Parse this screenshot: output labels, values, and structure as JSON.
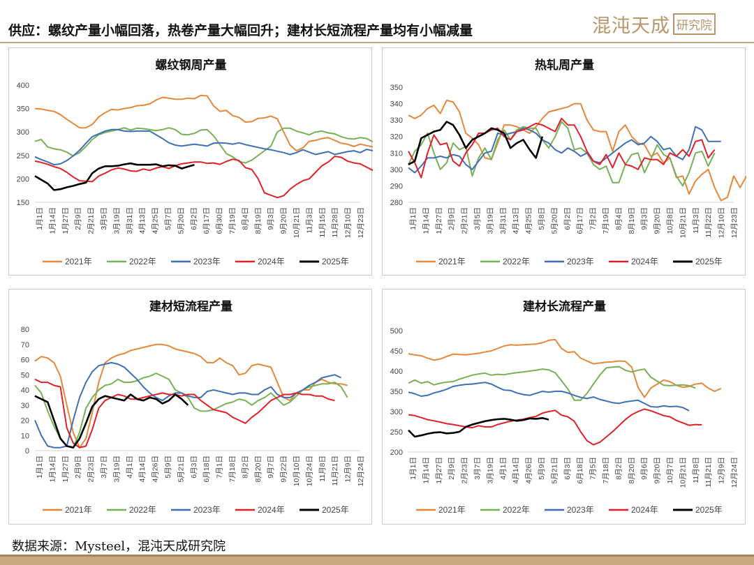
{
  "header": {
    "title": "供应：螺纹产量小幅回落，热卷产量大幅回升；建材长短流程产量均有小幅减量",
    "logo_mark": "混沌天成",
    "logo_box": "研究院"
  },
  "footer": {
    "source": "数据来源：Mysteel，混沌天成研究院"
  },
  "colors": {
    "2021年": "#e8873a",
    "2022年": "#77b155",
    "2023年": "#3f6fb5",
    "2024年": "#e02127",
    "2025年": "#000000"
  },
  "chart_data": [
    {
      "type": "line",
      "title": "螺纹钢周产量",
      "ylim": [
        150,
        400
      ],
      "yticks": [
        150,
        200,
        250,
        300,
        350,
        400
      ],
      "xlabels": [
        "1月1日",
        "1月14日",
        "1月27日",
        "2月9日",
        "2月21日",
        "3月5日",
        "3月19日",
        "3月31日",
        "4月13日",
        "4月25日",
        "5月7日",
        "5月20日",
        "6月2日",
        "6月17日",
        "6月30日",
        "7月19日",
        "8月4日",
        "8月19日",
        "9月3日",
        "9月20日",
        "10月21日",
        "11月3日",
        "11月15日",
        "11月28日",
        "12月10日",
        "12月23日"
      ],
      "series": [
        {
          "name": "2021年",
          "values": [
            350,
            349,
            346,
            344,
            337,
            327,
            318,
            309,
            309,
            316,
            332,
            341,
            348,
            347,
            350,
            352,
            356,
            357,
            360,
            368,
            374,
            372,
            370,
            370,
            372,
            371,
            378,
            377,
            356,
            344,
            346,
            335,
            331,
            321,
            322,
            329,
            330,
            334,
            328,
            300,
            272,
            260,
            266,
            280,
            282,
            286,
            288,
            282,
            276,
            274,
            269,
            274,
            271,
            268,
            272
          ]
        },
        {
          "name": "2022年",
          "values": [
            280,
            284,
            268,
            264,
            262,
            257,
            249,
            256,
            269,
            284,
            294,
            299,
            302,
            305,
            309,
            304,
            308,
            307,
            305,
            303,
            305,
            309,
            305,
            295,
            294,
            297,
            304,
            305,
            292,
            273,
            254,
            247,
            237,
            234,
            240,
            250,
            260,
            270,
            300,
            308,
            308,
            302,
            298,
            294,
            300,
            302,
            298,
            296,
            290,
            286,
            285,
            288,
            286,
            279,
            270
          ]
        },
        {
          "name": "2023年",
          "values": [
            247,
            241,
            236,
            230,
            232,
            239,
            249,
            261,
            276,
            290,
            296,
            302,
            305,
            305,
            302,
            301,
            302,
            302,
            302,
            294,
            286,
            277,
            272,
            270,
            272,
            274,
            272,
            270,
            276,
            277,
            276,
            274,
            277,
            273,
            270,
            267,
            264,
            262,
            259,
            256,
            252,
            256,
            262,
            257,
            252,
            255,
            258,
            252,
            255,
            258,
            260,
            256,
            263,
            260,
            255
          ]
        },
        {
          "name": "2024年",
          "values": [
            238,
            235,
            231,
            226,
            222,
            214,
            204,
            196,
            195,
            194,
            206,
            212,
            219,
            223,
            221,
            217,
            216,
            221,
            218,
            223,
            226,
            222,
            228,
            232,
            234,
            236,
            236,
            233,
            234,
            231,
            237,
            242,
            239,
            224,
            220,
            200,
            170,
            165,
            160,
            164,
            178,
            188,
            196,
            200,
            214,
            228,
            236,
            248,
            246,
            238,
            234,
            232,
            225,
            218,
            216
          ]
        },
        {
          "name": "2025年",
          "values": [
            206,
            198,
            190,
            176,
            178,
            182,
            185,
            189,
            192,
            212,
            222,
            227,
            227,
            228,
            231,
            233,
            230,
            230,
            230,
            231,
            227,
            229,
            228,
            222,
            226,
            230
          ]
        }
      ]
    },
    {
      "type": "line",
      "title": "热轧周产量",
      "ylim": [
        280,
        350
      ],
      "yticks": [
        280,
        290,
        300,
        310,
        320,
        330,
        340,
        350
      ],
      "xlabels": [
        "1月1日",
        "1月14日",
        "1月27日",
        "2月9日",
        "2月21日",
        "3月5日",
        "3月19日",
        "3月31日",
        "4月13日",
        "4月25日",
        "5月8日",
        "5月20日",
        "6月2日",
        "6月17日",
        "7月2日",
        "7月19日",
        "8月4日",
        "8月19日",
        "9月3日",
        "9月20日",
        "10月8日",
        "10月21日",
        "11月3日",
        "11月22日",
        "12月10日",
        "12月23日"
      ],
      "series": [
        {
          "name": "2021年",
          "values": [
            333,
            331,
            333,
            337,
            339,
            334,
            342,
            341,
            335,
            322,
            319,
            315,
            307,
            306,
            316,
            327,
            327,
            326,
            324,
            322,
            326,
            331,
            335,
            336,
            337,
            338,
            340,
            340,
            330,
            324,
            323,
            323,
            311,
            323,
            327,
            320,
            316,
            315,
            308,
            310,
            304,
            307,
            295,
            296,
            285,
            293,
            297,
            300,
            289,
            281,
            283,
            296,
            289,
            296
          ]
        },
        {
          "name": "2022年",
          "values": [
            303,
            311,
            315,
            322,
            310,
            300,
            304,
            316,
            312,
            314,
            296,
            307,
            313,
            306,
            318,
            324,
            318,
            324,
            326,
            325,
            325,
            318,
            313,
            320,
            329,
            325,
            312,
            313,
            310,
            303,
            300,
            302,
            292,
            292,
            303,
            309,
            310,
            298,
            306,
            315,
            309,
            307,
            296,
            290,
            298,
            310,
            311,
            302,
            310
          ]
        },
        {
          "name": "2023年",
          "values": [
            301,
            298,
            302,
            307,
            307,
            308,
            307,
            309,
            308,
            303,
            300,
            305,
            310,
            311,
            322,
            321,
            322,
            323,
            325,
            324,
            322,
            318,
            316,
            312,
            310,
            313,
            311,
            308,
            310,
            305,
            304,
            307,
            310,
            313,
            316,
            318,
            315,
            316,
            320,
            317,
            312,
            313,
            308,
            306,
            312,
            326,
            324,
            317,
            317,
            317
          ]
        },
        {
          "name": "2024年",
          "values": [
            311,
            304,
            295,
            310,
            321,
            315,
            316,
            305,
            302,
            310,
            315,
            322,
            322,
            324,
            325,
            320,
            318,
            323,
            324,
            326,
            328,
            327,
            325,
            323,
            331,
            327,
            327,
            320,
            311,
            305,
            303,
            309,
            301,
            310,
            303,
            302,
            300,
            307,
            306,
            306,
            303,
            310,
            308,
            312,
            308,
            317,
            318,
            307,
            312
          ]
        },
        {
          "name": "2025年",
          "values": [
            303,
            305,
            319,
            321,
            323,
            324,
            329,
            327,
            321,
            313,
            318,
            320,
            322,
            325,
            324,
            322,
            313,
            316,
            318,
            312,
            307,
            320
          ]
        }
      ]
    },
    {
      "type": "line",
      "title": "建材短流程产量",
      "ylim": [
        0,
        80
      ],
      "yticks": [
        0,
        10,
        20,
        30,
        40,
        50,
        60,
        70,
        80
      ],
      "xlabels": [
        "1月1日",
        "1月14日",
        "1月27日",
        "2月9日",
        "2月23日",
        "3月7日",
        "3月19日",
        "4月1日",
        "4月14日",
        "4月26日",
        "5月9日",
        "5月21日",
        "6月3日",
        "6月18日",
        "7月1日",
        "7月18日",
        "8月2日",
        "8月20日",
        "9月7日",
        "9月22日",
        "10月10日",
        "10月24日",
        "11月8日",
        "11月21日",
        "12月9日",
        "12月24日"
      ],
      "series": [
        {
          "name": "2021年",
          "values": [
            59,
            62,
            61,
            58,
            49,
            30,
            12,
            2,
            8,
            25,
            45,
            58,
            61,
            63,
            64,
            66,
            67,
            68,
            69,
            70,
            70,
            69,
            67,
            66,
            65,
            64,
            62,
            58,
            58,
            61,
            58,
            56,
            50,
            51,
            56,
            57,
            56,
            55,
            45,
            35,
            33,
            38,
            40,
            40,
            45,
            47,
            45,
            44,
            44,
            43
          ]
        },
        {
          "name": "2022年",
          "values": [
            43,
            38,
            26,
            16,
            8,
            3,
            2,
            12,
            28,
            35,
            40,
            43,
            44,
            47,
            45,
            45,
            46,
            48,
            49,
            51,
            49,
            47,
            40,
            38,
            35,
            28,
            26,
            26,
            27,
            29,
            31,
            32,
            34,
            33,
            30,
            33,
            35,
            38,
            34,
            30,
            32,
            36,
            40,
            42,
            43,
            44,
            44,
            45,
            42,
            35
          ]
        },
        {
          "name": "2023年",
          "values": [
            20,
            10,
            3,
            2,
            2,
            3,
            20,
            35,
            45,
            52,
            56,
            57,
            58,
            57,
            55,
            51,
            47,
            42,
            38,
            35,
            33,
            36,
            38,
            38,
            36,
            35,
            35,
            39,
            40,
            39,
            38,
            37,
            38,
            38,
            37,
            37,
            40,
            42,
            37,
            35,
            35,
            38,
            40,
            43,
            45,
            48,
            49,
            50,
            48
          ]
        },
        {
          "name": "2024年",
          "values": [
            47,
            45,
            45,
            43,
            42,
            15,
            5,
            2,
            3,
            14,
            28,
            33,
            35,
            37,
            36,
            34,
            34,
            35,
            36,
            37,
            38,
            37,
            37,
            36,
            37,
            37,
            33,
            30,
            27,
            26,
            25,
            22,
            20,
            18,
            22,
            25,
            29,
            33,
            35,
            37,
            37,
            38,
            37,
            37,
            36,
            36,
            34,
            33
          ]
        },
        {
          "name": "2025年",
          "values": [
            36,
            34,
            32,
            20,
            8,
            3,
            2,
            8,
            18,
            29,
            34,
            36,
            35,
            34,
            33,
            37,
            34,
            33,
            35,
            34,
            31,
            33,
            37,
            34,
            30
          ]
        }
      ]
    },
    {
      "type": "line",
      "title": "建材长流程产量",
      "ylim": [
        200,
        500
      ],
      "yticks": [
        200,
        250,
        300,
        350,
        400,
        450,
        500
      ],
      "xlabels": [
        "1月1日",
        "1月14日",
        "1月27日",
        "2月9日",
        "2月23日",
        "3月7日",
        "3月19日",
        "4月1日",
        "4月14日",
        "4月26日",
        "5月9日",
        "5月21日",
        "6月3日",
        "6月18日",
        "7月5日",
        "7月18日",
        "8月2日",
        "8月20日",
        "9月6日",
        "9月20日",
        "10月7日",
        "10月21日",
        "11月8日",
        "11月21日",
        "12月9日",
        "12月24日"
      ],
      "series": [
        {
          "name": "2021年",
          "values": [
            443,
            440,
            438,
            432,
            427,
            430,
            436,
            442,
            441,
            440,
            442,
            444,
            447,
            450,
            456,
            462,
            465,
            464,
            465,
            466,
            467,
            470,
            476,
            478,
            456,
            446,
            448,
            432,
            425,
            418,
            420,
            422,
            423,
            425,
            424,
            410,
            360,
            335,
            358,
            368,
            378,
            374,
            365,
            360,
            362,
            368,
            370,
            358,
            350,
            357
          ]
        },
        {
          "name": "2022年",
          "values": [
            370,
            378,
            370,
            374,
            366,
            370,
            373,
            374,
            380,
            385,
            390,
            393,
            395,
            390,
            392,
            391,
            394,
            396,
            398,
            400,
            402,
            405,
            403,
            396,
            376,
            356,
            328,
            328,
            345,
            368,
            390,
            408,
            410,
            411,
            402,
            398,
            402,
            405,
            385,
            375,
            365,
            364,
            365,
            366,
            364,
            358
          ]
        },
        {
          "name": "2023年",
          "values": [
            348,
            344,
            338,
            340,
            346,
            350,
            355,
            362,
            365,
            367,
            368,
            370,
            372,
            368,
            360,
            353,
            352,
            346,
            342,
            340,
            345,
            350,
            348,
            350,
            350,
            346,
            340,
            335,
            332,
            336,
            330,
            326,
            322,
            320,
            324,
            326,
            328,
            320,
            312,
            311,
            314,
            312,
            313,
            310,
            302
          ]
        },
        {
          "name": "2024年",
          "values": [
            292,
            290,
            285,
            280,
            277,
            274,
            270,
            268,
            265,
            262,
            260,
            265,
            262,
            262,
            268,
            272,
            276,
            279,
            281,
            285,
            288,
            296,
            300,
            303,
            291,
            287,
            276,
            250,
            228,
            218,
            224,
            237,
            250,
            265,
            280,
            292,
            300,
            306,
            302,
            296,
            290,
            287,
            278,
            272,
            266,
            268,
            267
          ]
        },
        {
          "name": "2025年",
          "values": [
            254,
            238,
            241,
            245,
            248,
            249,
            246,
            247,
            250,
            262,
            268,
            272,
            276,
            279,
            281,
            282,
            280,
            277,
            279,
            283,
            282,
            284,
            280
          ]
        }
      ]
    }
  ]
}
